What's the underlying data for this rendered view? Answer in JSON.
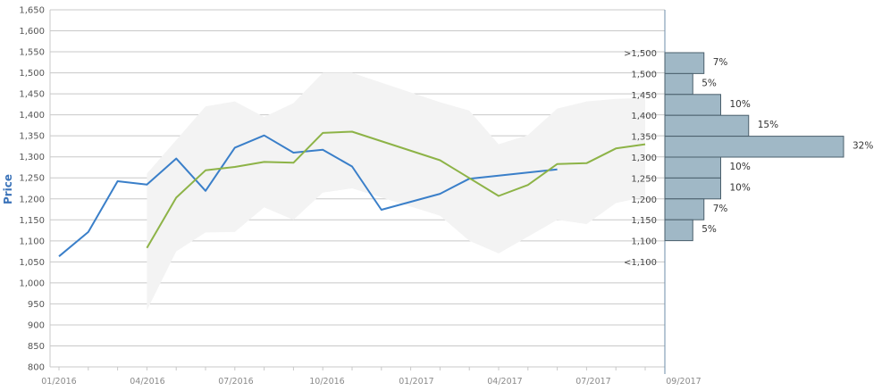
{
  "chart_data": {
    "type": "line",
    "ylabel": "Price",
    "ylim": [
      800,
      1650
    ],
    "y_ticks": [
      800,
      850,
      900,
      950,
      1000,
      1050,
      1100,
      1150,
      1200,
      1250,
      1300,
      1350,
      1400,
      1450,
      1500,
      1550,
      1600,
      1650
    ],
    "y_tick_labels": [
      "800",
      "850",
      "900",
      "950",
      "1,000",
      "1,050",
      "1,100",
      "1,150",
      "1,200",
      "1,250",
      "1,300",
      "1,350",
      "1,400",
      "1,450",
      "1,500",
      "1,550",
      "1,600",
      "1,650"
    ],
    "x_tick_labels": [
      "01/2016",
      "04/2016",
      "07/2016",
      "10/2016",
      "01/2017",
      "04/2017",
      "07/2017",
      "09/2017"
    ],
    "grid": true,
    "series": [
      {
        "color": "#3a7fc9",
        "points": [
          [
            "2016-01",
            1063
          ],
          [
            "2016-02",
            1121
          ],
          [
            "2016-03",
            1242
          ],
          [
            "2016-04",
            1234
          ],
          [
            "2016-05",
            1296
          ],
          [
            "2016-06",
            1219
          ],
          [
            "2016-07",
            1322
          ],
          [
            "2016-08",
            1351
          ],
          [
            "2016-09",
            1310
          ],
          [
            "2016-10",
            1317
          ],
          [
            "2016-11",
            1277
          ],
          [
            "2016-12",
            1174
          ],
          [
            "2017-02",
            1212
          ],
          [
            "2017-03",
            1248
          ],
          [
            "2017-06",
            1270
          ]
        ]
      },
      {
        "color": "#8db347",
        "points": [
          [
            "2016-04",
            1083
          ],
          [
            "2016-05",
            1203
          ],
          [
            "2016-06",
            1268
          ],
          [
            "2016-07",
            1276
          ],
          [
            "2016-08",
            1288
          ],
          [
            "2016-09",
            1286
          ],
          [
            "2016-10",
            1357
          ],
          [
            "2016-11",
            1360
          ],
          [
            "2017-02",
            1292
          ],
          [
            "2017-04",
            1207
          ],
          [
            "2017-05",
            1233
          ],
          [
            "2017-06",
            1283
          ],
          [
            "2017-07",
            1285
          ],
          [
            "2017-08",
            1320
          ],
          [
            "2017-09",
            1330
          ]
        ]
      }
    ],
    "range_band": {
      "color": "#f3f3f3",
      "upper": [
        [
          "2016-04",
          1260
        ],
        [
          "2016-05",
          1340
        ],
        [
          "2016-06",
          1420
        ],
        [
          "2016-07",
          1432
        ],
        [
          "2016-08",
          1395
        ],
        [
          "2016-09",
          1428
        ],
        [
          "2016-10",
          1500
        ],
        [
          "2016-11",
          1500
        ],
        [
          "2017-02",
          1430
        ],
        [
          "2017-03",
          1410
        ],
        [
          "2017-04",
          1330
        ],
        [
          "2017-05",
          1352
        ],
        [
          "2017-06",
          1415
        ],
        [
          "2017-07",
          1432
        ],
        [
          "2017-08",
          1438
        ],
        [
          "2017-09",
          1440
        ]
      ],
      "lower": [
        [
          "2016-04",
          935
        ],
        [
          "2016-05",
          1075
        ],
        [
          "2016-06",
          1120
        ],
        [
          "2016-07",
          1121
        ],
        [
          "2016-08",
          1180
        ],
        [
          "2016-09",
          1150
        ],
        [
          "2016-10",
          1215
        ],
        [
          "2016-11",
          1225
        ],
        [
          "2017-02",
          1160
        ],
        [
          "2017-03",
          1100
        ],
        [
          "2017-04",
          1070
        ],
        [
          "2017-05",
          1110
        ],
        [
          "2017-06",
          1150
        ],
        [
          "2017-07",
          1140
        ],
        [
          "2017-08",
          1190
        ],
        [
          "2017-09",
          1205
        ]
      ]
    },
    "histogram": {
      "color": "#a0b8c6",
      "border": "#4a5f6c",
      "bins": [
        {
          "label": ">1,500",
          "value": 7,
          "text": "7%"
        },
        {
          "label": "1,500",
          "value": 5,
          "text": "5%"
        },
        {
          "label": "1,450",
          "value": 10,
          "text": "10%"
        },
        {
          "label": "1,400",
          "value": 15,
          "text": "15%"
        },
        {
          "label": "1,350",
          "value": 32,
          "text": "32%"
        },
        {
          "label": "1,300",
          "value": 10,
          "text": "10%"
        },
        {
          "label": "1,250",
          "value": 10,
          "text": "10%"
        },
        {
          "label": "1,200",
          "value": 7,
          "text": "7%"
        },
        {
          "label": "1,150",
          "value": 5,
          "text": "5%"
        },
        {
          "label": "1,100",
          "value": null,
          "text": ""
        },
        {
          "label": "<1,100",
          "value": null,
          "text": ""
        }
      ]
    }
  }
}
